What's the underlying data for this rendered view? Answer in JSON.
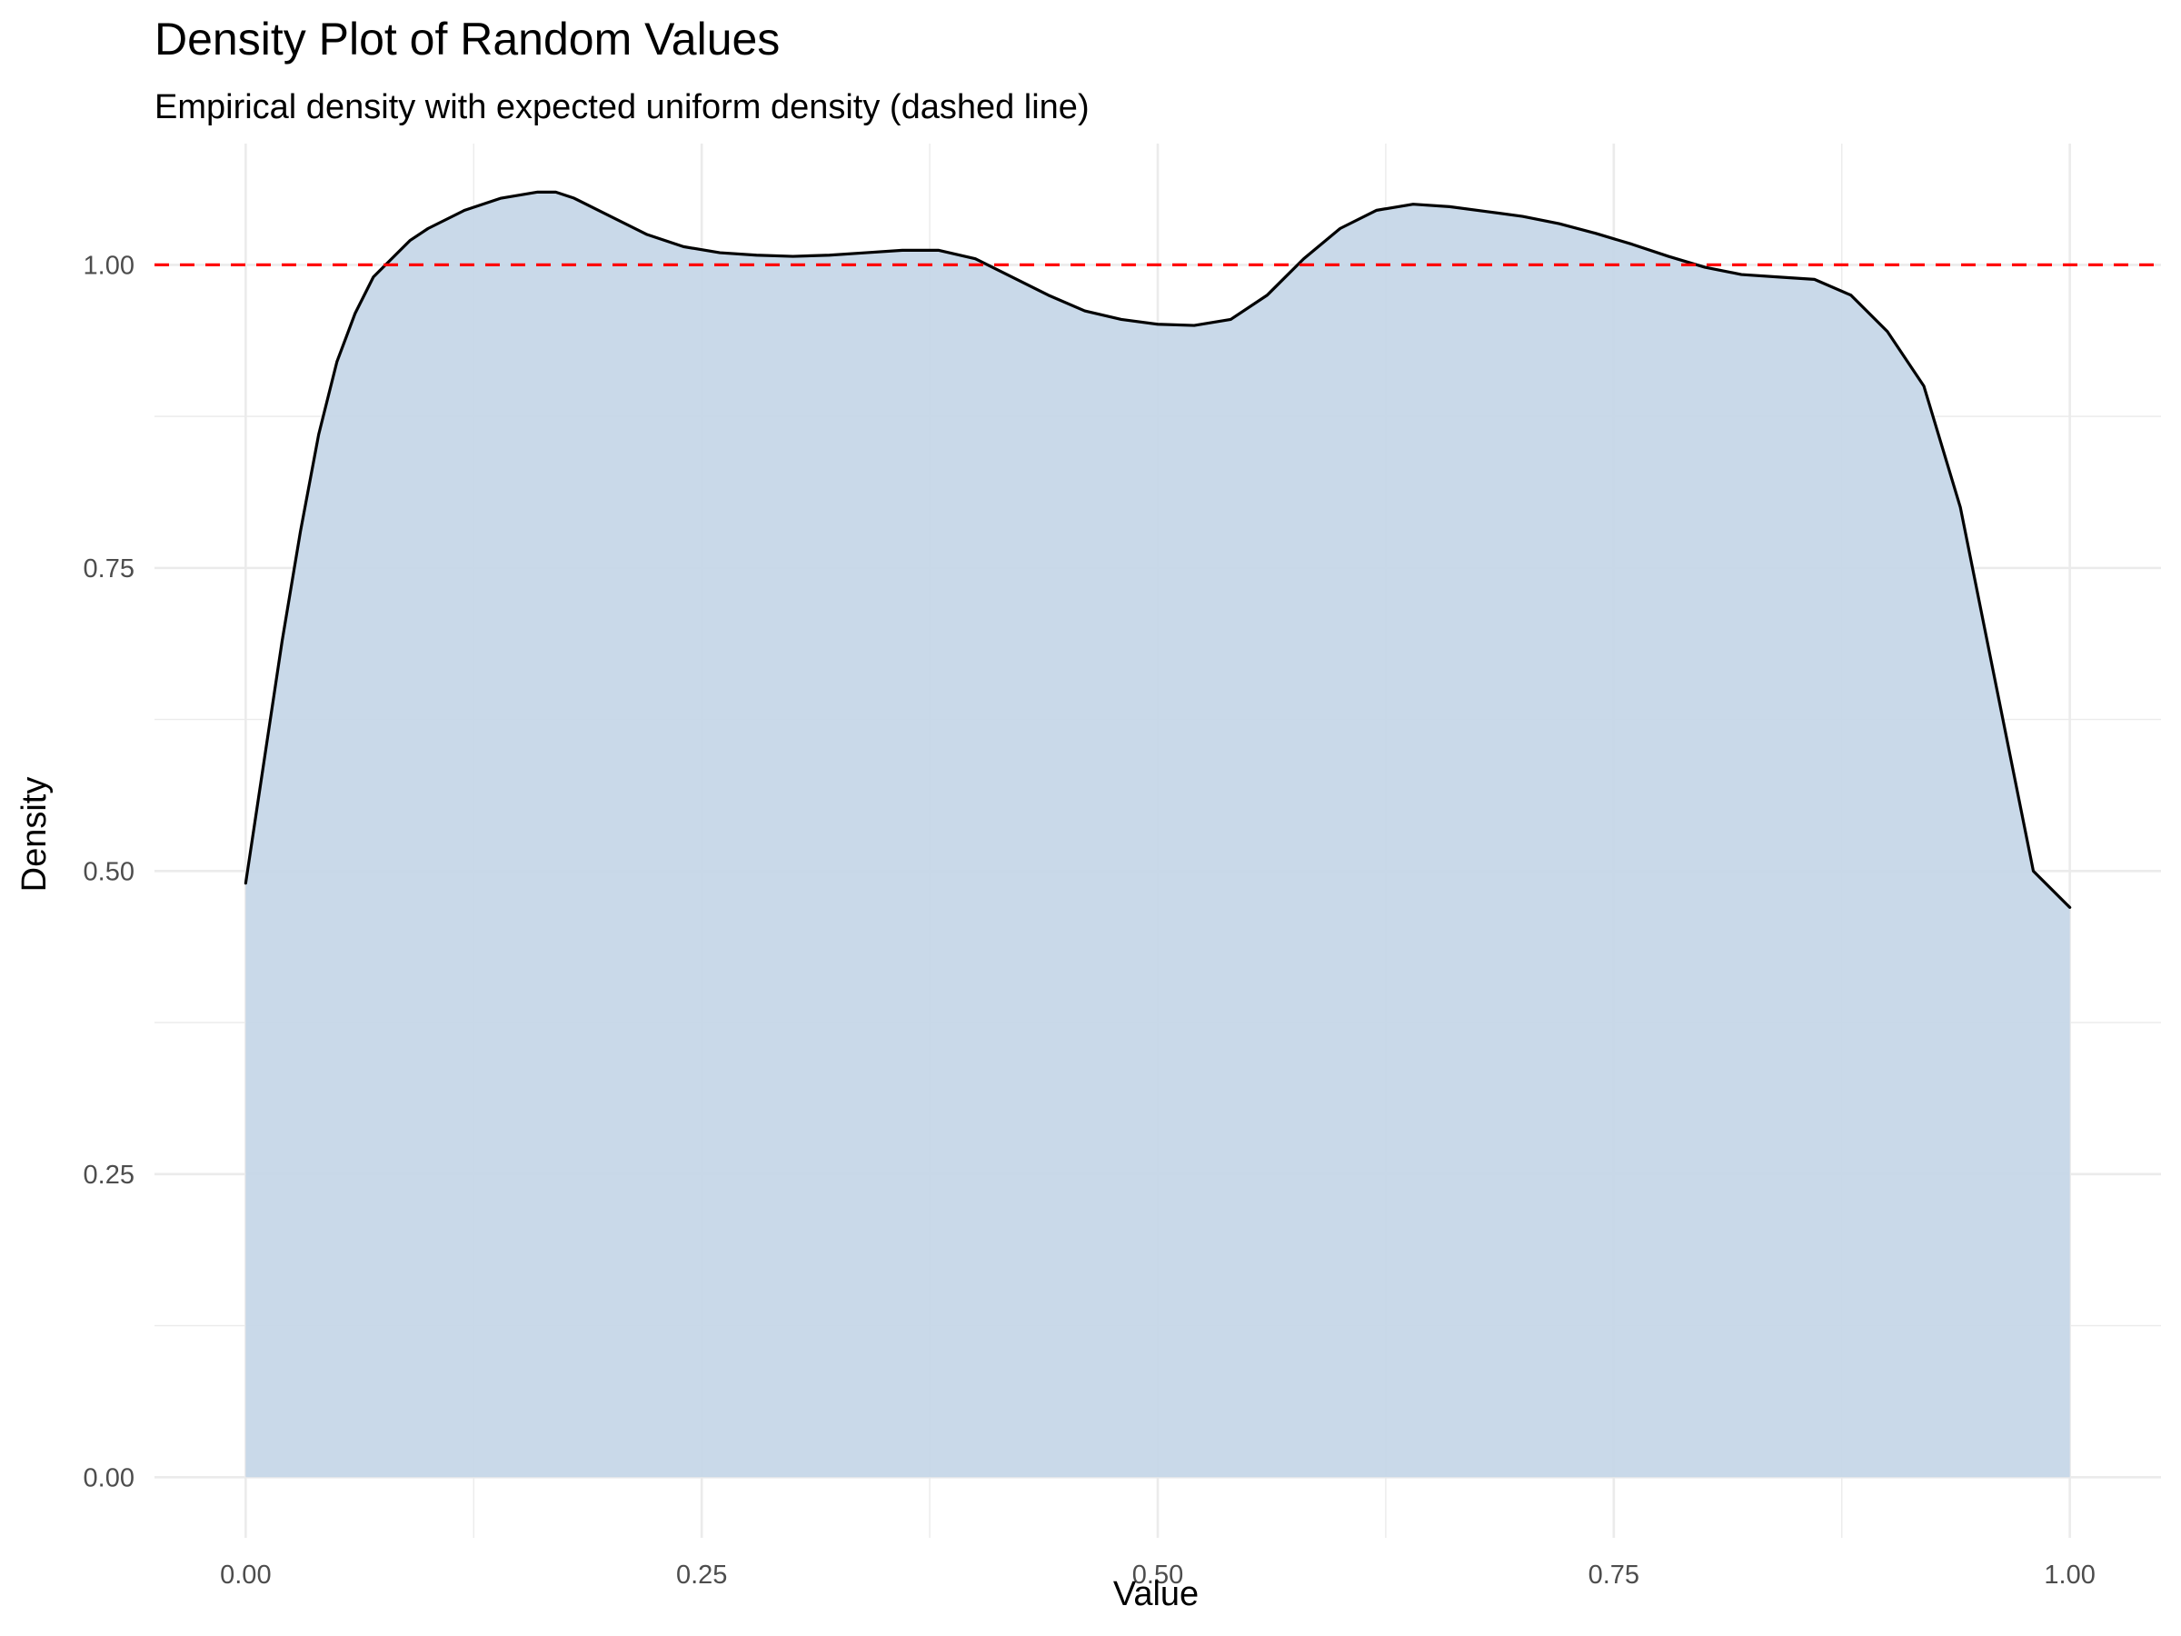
{
  "chart_data": {
    "type": "area",
    "title": "Density Plot of Random Values",
    "subtitle": "Empirical density with expected uniform density (dashed line)",
    "xlabel": "Value",
    "ylabel": "Density",
    "xlim": [
      -0.05,
      1.05
    ],
    "ylim": [
      -0.05,
      1.1
    ],
    "x_ticks": [
      0,
      0.25,
      0.5,
      0.75,
      1
    ],
    "x_tick_labels": [
      "0.00",
      "0.25",
      "0.50",
      "0.75",
      "1.00"
    ],
    "y_ticks": [
      0,
      0.25,
      0.5,
      0.75,
      1
    ],
    "y_tick_labels": [
      "0.00",
      "0.25",
      "0.50",
      "0.75",
      "1.00"
    ],
    "grid": true,
    "legend": "none",
    "series": [
      {
        "x": [
          0,
          0.01,
          0.02,
          0.03,
          0.04,
          0.05,
          0.06,
          0.07,
          0.08,
          0.09,
          0.1,
          0.12,
          0.14,
          0.16,
          0.17,
          0.18,
          0.2,
          0.22,
          0.24,
          0.26,
          0.28,
          0.3,
          0.32,
          0.34,
          0.36,
          0.38,
          0.4,
          0.42,
          0.44,
          0.46,
          0.48,
          0.5,
          0.52,
          0.54,
          0.56,
          0.58,
          0.6,
          0.62,
          0.64,
          0.66,
          0.68,
          0.7,
          0.72,
          0.74,
          0.76,
          0.78,
          0.8,
          0.82,
          0.84,
          0.86,
          0.88,
          0.9,
          0.92,
          0.94,
          0.96,
          0.98,
          1
        ],
        "y": [
          0.49,
          0.59,
          0.69,
          0.78,
          0.86,
          0.92,
          0.96,
          0.99,
          1.005,
          1.02,
          1.03,
          1.045,
          1.055,
          1.06,
          1.06,
          1.055,
          1.04,
          1.025,
          1.015,
          1.01,
          1.008,
          1.007,
          1.008,
          1.01,
          1.012,
          1.012,
          1.005,
          0.99,
          0.975,
          0.962,
          0.955,
          0.951,
          0.95,
          0.955,
          0.975,
          1.005,
          1.03,
          1.045,
          1.05,
          1.048,
          1.044,
          1.04,
          1.034,
          1.026,
          1.017,
          1.007,
          0.998,
          0.992,
          0.99,
          0.988,
          0.975,
          0.945,
          0.9,
          0.8,
          0.65,
          0.5,
          0.47
        ]
      }
    ],
    "reference_line": {
      "y": 1.0,
      "style": "dashed",
      "color": "#ff0000"
    },
    "colors": {
      "fill": "#c6d7e8",
      "curve": "#000000",
      "reference": "#ff0000",
      "grid": "#ebebeb",
      "tick_text": "#4d4d4d"
    }
  }
}
